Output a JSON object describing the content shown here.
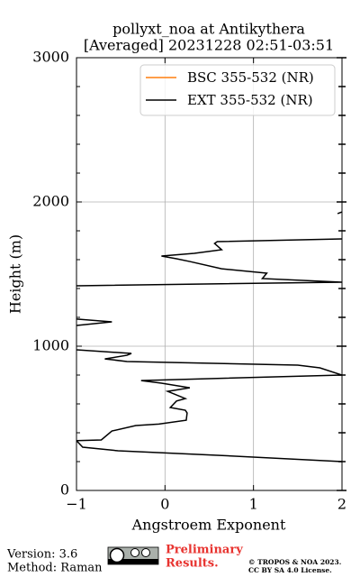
{
  "chart_data": {
    "type": "profile",
    "title": [
      "pollyxt_noa at Antikythera",
      "[Averaged] 20231228 02:51-03:51"
    ],
    "xlabel": "Angstroem Exponent",
    "ylabel": "Height (m)",
    "xlim": [
      -1,
      2
    ],
    "xticks": [
      {
        "value": -1,
        "label": "−1"
      },
      0,
      1,
      2
    ],
    "ylim": [
      0,
      3000
    ],
    "yticks": [
      0,
      1000,
      2000,
      3000
    ],
    "yminorticks": [
      200,
      400,
      600,
      800,
      1200,
      1400,
      1600,
      1800,
      2200,
      2400,
      2600,
      2800
    ],
    "grid": true,
    "legend": "upper right",
    "heights": [
      200,
      244,
      275,
      300,
      345,
      350,
      412,
      450,
      460,
      487,
      537,
      556,
      575,
      620,
      637,
      687,
      712,
      744,
      762,
      800,
      850,
      869,
      894,
      912,
      937,
      950,
      975,
      null,
      1144,
      1169,
      1188,
      null,
      1419,
      1444,
      1469,
      1506,
      1537,
      1587,
      1606,
      1625,
      1644,
      1669,
      1712,
      1725,
      1744,
      null,
      1919,
      1931
    ],
    "series": [
      {
        "name": "BSC 355-532 (NR)",
        "color": "#ff7f0e",
        "values": [
          null,
          null,
          null,
          null,
          null,
          null,
          null,
          null,
          null,
          null,
          null,
          null,
          null,
          null,
          null,
          null,
          null,
          null,
          null,
          null,
          null,
          null,
          null,
          null,
          null,
          null,
          null,
          null,
          null,
          null,
          null,
          null,
          null,
          null,
          null,
          null,
          null,
          null,
          null,
          null,
          null,
          null,
          null,
          null,
          null,
          null,
          null,
          null
        ]
      },
      {
        "name": "EXT 355-532 (NR)",
        "color": "#000000",
        "values": [
          2.0,
          0.59,
          -0.53,
          -0.93,
          -1.0,
          -0.72,
          -0.6,
          -0.33,
          -0.07,
          0.24,
          0.25,
          0.23,
          0.06,
          0.13,
          0.23,
          0.03,
          0.28,
          -0.04,
          -0.27,
          2.0,
          1.75,
          1.5,
          -0.43,
          -0.68,
          -0.43,
          -0.38,
          -1.0,
          null,
          -1.0,
          -0.6,
          -1.0,
          null,
          -1.0,
          2.0,
          1.1,
          1.15,
          0.64,
          0.28,
          0.13,
          -0.04,
          0.33,
          0.64,
          0.56,
          0.59,
          2.0,
          null,
          1.95,
          2.0
        ]
      }
    ]
  },
  "footer": {
    "version": "Version: 3.6",
    "method": "Method: Raman",
    "preliminary": [
      "Preliminary",
      "Results."
    ],
    "license": [
      "© TROPOS & NOA 2023.",
      "CC BY SA 4.0 License."
    ]
  }
}
